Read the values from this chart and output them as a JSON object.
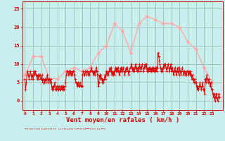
{
  "bg_color": "#c8eeed",
  "grid_color": "#a0c8c0",
  "line_mean_color": "#dd0000",
  "line_gust_color": "#ffaaaa",
  "xlabel": "Vent moyen/en rafales ( km/h )",
  "xlabel_color": "#cc0000",
  "tick_color": "#cc0000",
  "ylim": [
    -2.5,
    27
  ],
  "xlim": [
    -0.3,
    24.3
  ],
  "yticks": [
    0,
    5,
    10,
    15,
    20,
    25
  ],
  "xticks": [
    0,
    1,
    2,
    3,
    4,
    5,
    6,
    7,
    8,
    9,
    10,
    11,
    12,
    13,
    14,
    15,
    16,
    17,
    18,
    19,
    20,
    21,
    22,
    23
  ],
  "gust_x": [
    0,
    1,
    2,
    3,
    4,
    5,
    6,
    7,
    8,
    9,
    10,
    11,
    12,
    13,
    14,
    15,
    16,
    17,
    18,
    19,
    20,
    21,
    22,
    23
  ],
  "gust_y": [
    7,
    12,
    12,
    6,
    6,
    8,
    9,
    8,
    9,
    13,
    15,
    21,
    19,
    13,
    21,
    23,
    22,
    21,
    21,
    20,
    16,
    14,
    9,
    5
  ],
  "mean_x": [
    0.0,
    0.08,
    0.17,
    0.25,
    0.33,
    0.42,
    0.5,
    0.58,
    0.67,
    0.75,
    0.83,
    0.92,
    1.0,
    1.08,
    1.17,
    1.25,
    1.33,
    1.42,
    1.5,
    1.58,
    1.67,
    1.75,
    1.83,
    1.92,
    2.0,
    2.08,
    2.17,
    2.25,
    2.33,
    2.42,
    2.5,
    2.58,
    2.67,
    2.75,
    2.83,
    2.92,
    3.0,
    3.08,
    3.17,
    3.25,
    3.33,
    3.42,
    3.5,
    3.58,
    3.67,
    3.75,
    3.83,
    3.92,
    4.0,
    4.08,
    4.17,
    4.25,
    4.33,
    4.42,
    4.5,
    4.58,
    4.67,
    4.75,
    4.83,
    4.92,
    5.0,
    5.08,
    5.17,
    5.25,
    5.33,
    5.42,
    5.5,
    5.58,
    5.67,
    5.75,
    5.83,
    5.92,
    6.0,
    6.08,
    6.17,
    6.25,
    6.33,
    6.42,
    6.5,
    6.58,
    6.67,
    6.75,
    6.83,
    6.92,
    7.0,
    7.08,
    7.17,
    7.25,
    7.33,
    7.42,
    7.5,
    7.58,
    7.67,
    7.75,
    7.83,
    7.92,
    8.0,
    8.08,
    8.17,
    8.25,
    8.33,
    8.42,
    8.5,
    8.58,
    8.67,
    8.75,
    8.83,
    8.92,
    9.0,
    9.08,
    9.17,
    9.25,
    9.33,
    9.42,
    9.5,
    9.58,
    9.67,
    9.75,
    9.83,
    9.92,
    10.0,
    10.08,
    10.17,
    10.25,
    10.33,
    10.42,
    10.5,
    10.58,
    10.67,
    10.75,
    10.83,
    10.92,
    11.0,
    11.08,
    11.17,
    11.25,
    11.33,
    11.42,
    11.5,
    11.58,
    11.67,
    11.75,
    11.83,
    11.92,
    12.0,
    12.08,
    12.17,
    12.25,
    12.33,
    12.42,
    12.5,
    12.58,
    12.67,
    12.75,
    12.83,
    12.92,
    13.0,
    13.08,
    13.17,
    13.25,
    13.33,
    13.42,
    13.5,
    13.58,
    13.67,
    13.75,
    13.83,
    13.92,
    14.0,
    14.08,
    14.17,
    14.25,
    14.33,
    14.42,
    14.5,
    14.58,
    14.67,
    14.75,
    14.83,
    14.92,
    15.0,
    15.08,
    15.17,
    15.25,
    15.33,
    15.42,
    15.5,
    15.58,
    15.67,
    15.75,
    15.83,
    15.92,
    16.0,
    16.08,
    16.17,
    16.25,
    16.33,
    16.42,
    16.5,
    16.58,
    16.67,
    16.75,
    16.83,
    16.92,
    17.0,
    17.08,
    17.17,
    17.25,
    17.33,
    17.42,
    17.5,
    17.58,
    17.67,
    17.75,
    17.83,
    17.92,
    18.0,
    18.08,
    18.17,
    18.25,
    18.33,
    18.42,
    18.5,
    18.58,
    18.67,
    18.75,
    18.83,
    18.92,
    19.0,
    19.08,
    19.17,
    19.25,
    19.33,
    19.42,
    19.5,
    19.58,
    19.67,
    19.75,
    19.83,
    19.92,
    20.0,
    20.08,
    20.17,
    20.25,
    20.33,
    20.42,
    20.5,
    20.58,
    20.67,
    20.75,
    20.83,
    20.92,
    21.0,
    21.08,
    21.17,
    21.25,
    21.33,
    21.42,
    21.5,
    21.58,
    21.67,
    21.75,
    21.83,
    21.92,
    22.0,
    22.08,
    22.17,
    22.25,
    22.33,
    22.42,
    22.5,
    22.58,
    22.67,
    22.75,
    22.83,
    22.92,
    23.0,
    23.08,
    23.17,
    23.25,
    23.33,
    23.42,
    23.5,
    23.58,
    23.67,
    23.75,
    23.83,
    23.92
  ],
  "mean_y": [
    6,
    3,
    5,
    7,
    8,
    7,
    6,
    7,
    8,
    7,
    6,
    7,
    6,
    8,
    7,
    8,
    7,
    7,
    6,
    7,
    6,
    7,
    7,
    6,
    6,
    7,
    5,
    6,
    6,
    5,
    6,
    5,
    6,
    7,
    5,
    6,
    6,
    5,
    6,
    5,
    3,
    4,
    3,
    4,
    5,
    3,
    3,
    4,
    3,
    3,
    4,
    3,
    3,
    4,
    3,
    4,
    3,
    4,
    3,
    4,
    5,
    7,
    8,
    8,
    7,
    8,
    7,
    8,
    7,
    8,
    7,
    8,
    8,
    7,
    6,
    5,
    5,
    4,
    5,
    4,
    4,
    5,
    4,
    4,
    4,
    7,
    8,
    7,
    7,
    8,
    7,
    8,
    8,
    7,
    8,
    7,
    8,
    8,
    9,
    8,
    8,
    7,
    8,
    7,
    8,
    9,
    8,
    7,
    4,
    5,
    7,
    6,
    7,
    6,
    5,
    6,
    5,
    6,
    7,
    6,
    8,
    7,
    8,
    7,
    8,
    9,
    8,
    9,
    7,
    8,
    7,
    8,
    7,
    9,
    8,
    9,
    8,
    9,
    8,
    7,
    8,
    9,
    8,
    9,
    8,
    9,
    8,
    7,
    8,
    9,
    8,
    9,
    8,
    7,
    8,
    9,
    9,
    10,
    9,
    8,
    9,
    8,
    9,
    10,
    9,
    8,
    9,
    8,
    9,
    10,
    9,
    8,
    9,
    10,
    9,
    8,
    9,
    10,
    9,
    10,
    8,
    9,
    8,
    9,
    8,
    9,
    8,
    9,
    8,
    9,
    8,
    9,
    8,
    9,
    8,
    9,
    13,
    12,
    11,
    10,
    9,
    8,
    9,
    8,
    9,
    10,
    9,
    10,
    9,
    8,
    9,
    10,
    9,
    8,
    9,
    10,
    8,
    9,
    8,
    7,
    8,
    9,
    8,
    7,
    8,
    9,
    8,
    7,
    9,
    8,
    7,
    8,
    9,
    8,
    7,
    8,
    7,
    8,
    7,
    8,
    8,
    7,
    8,
    7,
    8,
    7,
    6,
    7,
    6,
    5,
    6,
    5,
    5,
    4,
    3,
    4,
    3,
    4,
    5,
    4,
    3,
    4,
    5,
    3,
    3,
    2,
    6,
    5,
    7,
    6,
    5,
    6,
    5,
    4,
    5,
    3,
    3,
    2,
    1,
    2,
    0,
    1,
    2,
    1,
    0,
    1,
    2,
    1
  ]
}
